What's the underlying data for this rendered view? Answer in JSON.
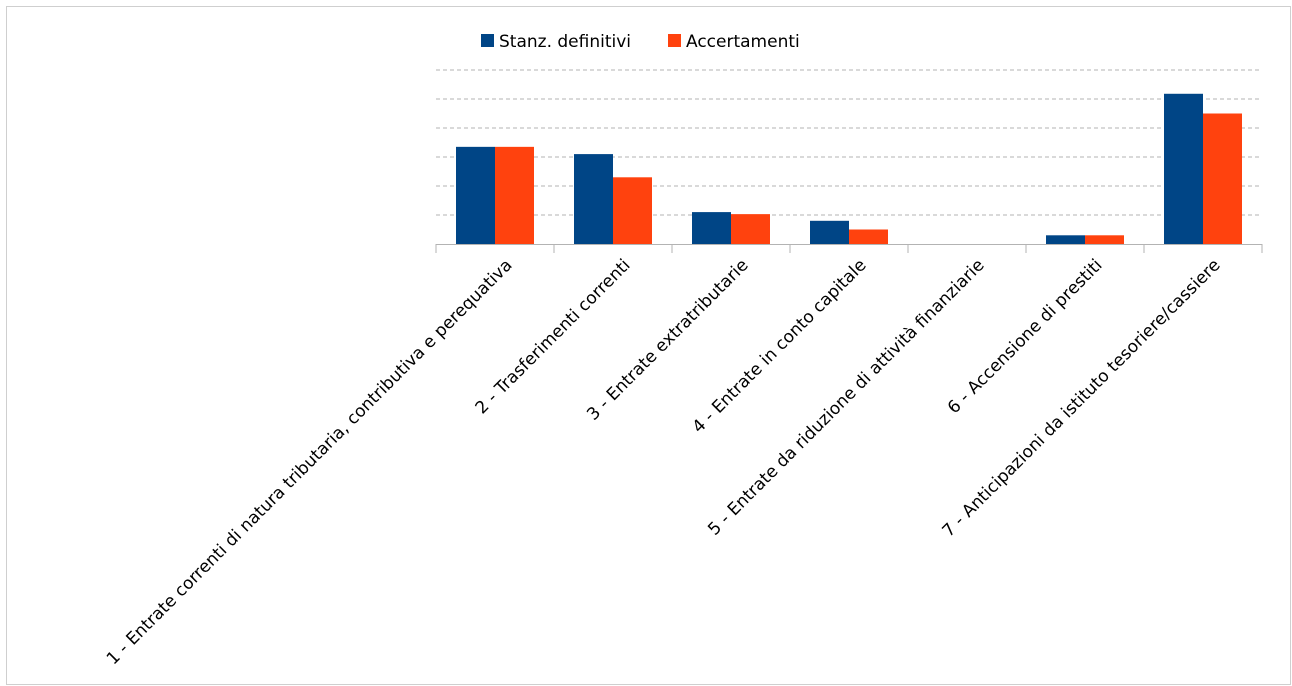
{
  "chart_data": {
    "type": "bar",
    "categories": [
      "1 - Entrate correnti di natura tributaria, contributiva e perequativa",
      "2 - Trasferimenti correnti",
      "3 - Entrate extratributarie",
      "4 - Entrate in conto capitale",
      "5 - Entrate da riduzione di attività finanziarie",
      "6 - Accensione di prestiti",
      "7 - Anticipazioni da istituto tesoriere/cassiere"
    ],
    "series": [
      {
        "name": "Stanz. definitivi",
        "color": "#004586",
        "values": [
          3.35,
          3.1,
          1.1,
          0.8,
          0.0,
          0.3,
          5.18
        ]
      },
      {
        "name": "Accertamenti",
        "color": "#ff420e",
        "values": [
          3.35,
          2.3,
          1.03,
          0.5,
          0.0,
          0.3,
          4.5
        ]
      }
    ],
    "ylim": [
      0,
      6
    ],
    "grid": true,
    "legend_position": "top-center",
    "title": "",
    "xlabel": "",
    "ylabel": ""
  }
}
